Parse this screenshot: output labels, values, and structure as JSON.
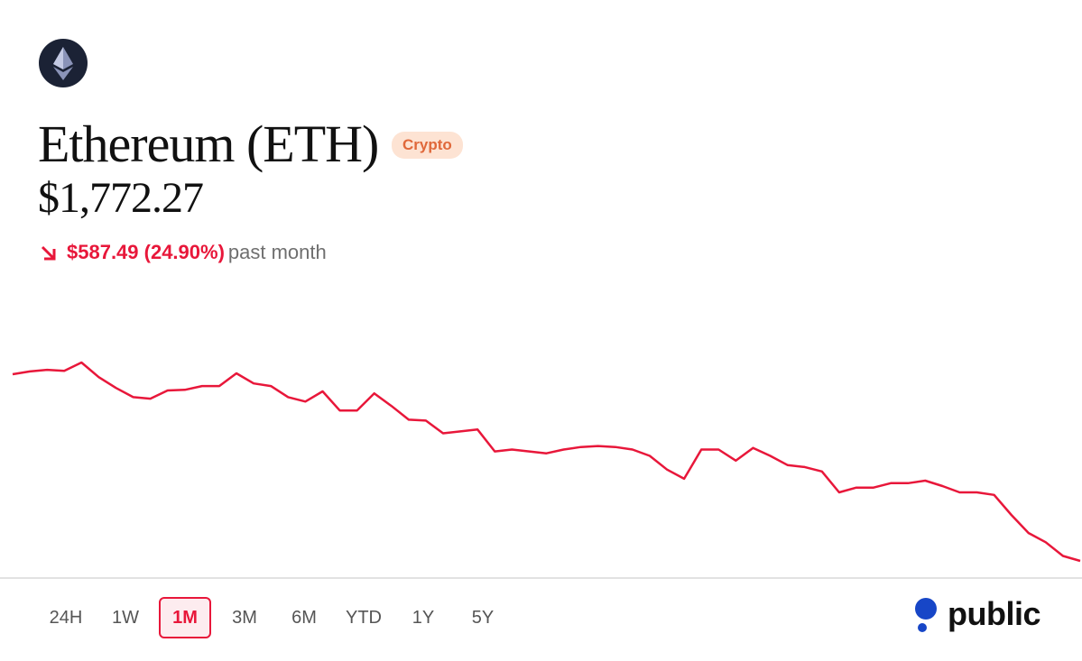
{
  "header": {
    "title": "Ethereum (ETH)",
    "badge": "Crypto",
    "price": "$1,772.27",
    "change": "$587.49 (24.90%)",
    "period": "past month"
  },
  "chart_data": {
    "type": "line",
    "color": "#e8173a",
    "values": [
      2360,
      2369,
      2374,
      2371,
      2397,
      2351,
      2317,
      2288,
      2283,
      2309,
      2311,
      2323,
      2323,
      2363,
      2331,
      2323,
      2288,
      2274,
      2306,
      2246,
      2246,
      2300,
      2260,
      2217,
      2214,
      2174,
      2180,
      2186,
      2117,
      2123,
      2117,
      2111,
      2123,
      2131,
      2134,
      2131,
      2123,
      2103,
      2060,
      2031,
      2123,
      2123,
      2088,
      2128,
      2103,
      2074,
      2068,
      2054,
      1988,
      2003,
      2003,
      2017,
      2017,
      2025,
      2008,
      1988,
      1988,
      1980,
      1917,
      1860,
      1831,
      1788,
      1772.27
    ]
  },
  "ranges": [
    "24H",
    "1W",
    "1M",
    "3M",
    "6M",
    "YTD",
    "1Y",
    "5Y"
  ],
  "selected_range": "1M",
  "brand": "public"
}
